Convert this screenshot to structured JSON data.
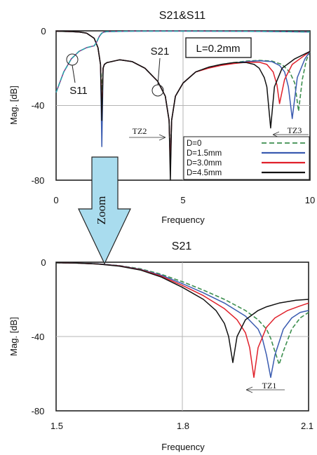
{
  "chart_data": [
    {
      "type": "line",
      "title": "S21&S11",
      "xlabel": "Frequency",
      "ylabel": "Mag. [dB]",
      "xlim": [
        0,
        10
      ],
      "ylim": [
        -80,
        0
      ],
      "xticks": [
        "0",
        "5",
        "10"
      ],
      "yticks": [
        "0",
        "-40",
        "-80"
      ],
      "grid": true,
      "label_box": "L=0.2mm",
      "annotations": {
        "s11": "S11",
        "s21": "S21",
        "tz2": "TZ2",
        "tz3": "TZ3"
      },
      "legend": {
        "position": "bottom-right",
        "entries": [
          {
            "name": "D=0",
            "color": "#3d8f4f",
            "dash": true
          },
          {
            "name": "D=1.5mm",
            "color": "#3a5bb0",
            "dash": false
          },
          {
            "name": "D=3.0mm",
            "color": "#e0202a",
            "dash": false
          },
          {
            "name": "D=4.5mm",
            "color": "#111111",
            "dash": false
          }
        ]
      },
      "series": [
        {
          "name": "D=0",
          "color": "#3d8f4f",
          "dash": true,
          "x": [
            0,
            0.3,
            0.6,
            0.9,
            1.2,
            1.5,
            1.65,
            1.75,
            1.8,
            1.85,
            1.9,
            2.0,
            2.5,
            3.0,
            3.5,
            4.0,
            4.3,
            4.45,
            4.5,
            4.55,
            4.7,
            5.0,
            5.5,
            6.0,
            6.5,
            7.0,
            7.5,
            8.0,
            8.5,
            8.9,
            9.2,
            9.4,
            9.55,
            9.7,
            9.85,
            10.0
          ],
          "y": [
            -0.2,
            -0.3,
            -0.4,
            -0.6,
            -1.2,
            -4,
            -9,
            -18,
            -32,
            -20,
            -18,
            -17,
            -15.5,
            -16.5,
            -20,
            -27,
            -35,
            -48,
            -66,
            -48,
            -35,
            -28,
            -22,
            -19.5,
            -18,
            -17,
            -16.2,
            -15.8,
            -16.2,
            -18,
            -22,
            -28,
            -43,
            -26,
            -16,
            -11
          ]
        },
        {
          "name": "D=1.5mm",
          "color": "#3a5bb0",
          "dash": false,
          "x": [
            0,
            0.3,
            0.6,
            0.9,
            1.2,
            1.5,
            1.65,
            1.75,
            1.8,
            1.85,
            1.9,
            2.0,
            2.5,
            3.0,
            3.5,
            4.0,
            4.3,
            4.45,
            4.5,
            4.55,
            4.7,
            5.0,
            5.5,
            6.0,
            6.5,
            7.0,
            7.5,
            8.0,
            8.5,
            8.8,
            9.0,
            9.15,
            9.3,
            9.5,
            9.8,
            10.0
          ],
          "y": [
            -0.2,
            -0.3,
            -0.4,
            -0.6,
            -1.2,
            -4,
            -9,
            -18,
            -62,
            -20,
            -18,
            -17,
            -15.5,
            -16.5,
            -20,
            -27,
            -35,
            -48,
            -72,
            -48,
            -35,
            -28,
            -22,
            -19.8,
            -18.2,
            -17.2,
            -16.5,
            -16,
            -16.5,
            -18.5,
            -22,
            -30,
            -47,
            -25,
            -15,
            -11
          ]
        },
        {
          "name": "D=3.0mm",
          "color": "#e0202a",
          "dash": false,
          "x": [
            0,
            0.3,
            0.6,
            0.9,
            1.2,
            1.5,
            1.65,
            1.75,
            1.8,
            1.85,
            1.9,
            2.0,
            2.5,
            3.0,
            3.5,
            4.0,
            4.3,
            4.45,
            4.5,
            4.55,
            4.7,
            5.0,
            5.5,
            6.0,
            6.5,
            7.0,
            7.5,
            8.0,
            8.3,
            8.55,
            8.7,
            8.8,
            9.0,
            9.3,
            9.7,
            10.0
          ],
          "y": [
            -0.2,
            -0.3,
            -0.4,
            -0.6,
            -1.2,
            -4,
            -9,
            -18,
            -44,
            -20,
            -18,
            -17,
            -15.5,
            -16.5,
            -20,
            -27,
            -35,
            -48,
            -74,
            -48,
            -35,
            -28,
            -22,
            -20,
            -18.5,
            -17.5,
            -16.8,
            -16.8,
            -18,
            -22,
            -29,
            -39,
            -26,
            -18,
            -14,
            -11
          ]
        },
        {
          "name": "D=4.5mm",
          "color": "#111111",
          "dash": false,
          "x": [
            0,
            0.3,
            0.6,
            0.9,
            1.2,
            1.5,
            1.65,
            1.75,
            1.8,
            1.85,
            1.9,
            2.0,
            2.5,
            3.0,
            3.5,
            4.0,
            4.3,
            4.45,
            4.5,
            4.55,
            4.7,
            5.0,
            5.5,
            6.0,
            6.5,
            7.0,
            7.5,
            7.8,
            8.0,
            8.2,
            8.3,
            8.45,
            8.6,
            8.9,
            9.4,
            10.0
          ],
          "y": [
            -0.2,
            -0.3,
            -0.4,
            -0.6,
            -1.2,
            -4,
            -9,
            -18,
            -48,
            -20,
            -18,
            -17,
            -15.5,
            -16.5,
            -20,
            -27,
            -35,
            -48,
            -80,
            -48,
            -35,
            -28,
            -22,
            -19.5,
            -18,
            -17,
            -17,
            -18,
            -20,
            -25,
            -30,
            -52,
            -30,
            -20,
            -15,
            -11
          ]
        },
        {
          "name": "S11",
          "color": "#7a3a8a",
          "dash": false,
          "x": [
            0,
            0.3,
            0.6,
            0.9,
            1.2,
            1.5,
            1.6,
            1.7,
            1.8,
            1.9,
            2.0,
            2.5,
            3.0,
            4.0,
            5.0,
            6.0,
            8.0,
            10.0
          ],
          "y": [
            -33,
            -22,
            -15,
            -11,
            -9,
            -8,
            -6,
            -3,
            -1.2,
            -0.6,
            -0.4,
            -0.3,
            -0.2,
            -0.15,
            -0.15,
            -0.2,
            -0.3,
            -0.6
          ]
        },
        {
          "name": "S11-cyan",
          "color": "#2aa0a8",
          "dash": true,
          "x": [
            0,
            0.3,
            0.6,
            0.9,
            1.2,
            1.5,
            1.6,
            1.7,
            1.8,
            1.9,
            2.0,
            2.5,
            3.0,
            4.0,
            5.0,
            6.0,
            8.0,
            10.0
          ],
          "y": [
            -33,
            -22,
            -15,
            -11,
            -9,
            -8,
            -6,
            -3,
            -1.2,
            -0.6,
            -0.4,
            -0.3,
            -0.2,
            -0.15,
            -0.15,
            -0.2,
            -0.3,
            -0.6
          ]
        }
      ]
    },
    {
      "type": "line",
      "title": "S21",
      "xlabel": "Frequency",
      "ylabel": "Mag. [dB]",
      "xlim": [
        1.5,
        2.1
      ],
      "ylim": [
        -80,
        0
      ],
      "xticks": [
        "1.5",
        "1.8",
        "2.1"
      ],
      "yticks": [
        "0",
        "-40",
        "-80"
      ],
      "grid": true,
      "annotations": {
        "tz1": "TZ1"
      },
      "series": [
        {
          "name": "D=0",
          "color": "#3d8f4f",
          "dash": true,
          "x": [
            1.5,
            1.55,
            1.6,
            1.65,
            1.7,
            1.75,
            1.8,
            1.85,
            1.9,
            1.95,
            1.98,
            2.0,
            2.01,
            2.02,
            2.03,
            2.04,
            2.06,
            2.08,
            2.1
          ],
          "y": [
            -0.3,
            -0.5,
            -0.9,
            -1.8,
            -3.5,
            -6.5,
            -10.5,
            -15,
            -20,
            -26,
            -31,
            -36,
            -41,
            -48,
            -55,
            -48,
            -36,
            -30,
            -27
          ]
        },
        {
          "name": "D=1.5mm",
          "color": "#3a5bb0",
          "dash": false,
          "x": [
            1.5,
            1.55,
            1.6,
            1.65,
            1.7,
            1.75,
            1.8,
            1.85,
            1.9,
            1.95,
            1.98,
            1.99,
            2.0,
            2.01,
            2.02,
            2.04,
            2.06,
            2.08,
            2.1
          ],
          "y": [
            -0.3,
            -0.5,
            -0.9,
            -1.9,
            -3.8,
            -7,
            -11.5,
            -16.5,
            -22,
            -29,
            -36,
            -41,
            -50,
            -62,
            -50,
            -36,
            -30,
            -27,
            -26
          ]
        },
        {
          "name": "D=3.0mm",
          "color": "#e0202a",
          "dash": false,
          "x": [
            1.5,
            1.55,
            1.6,
            1.65,
            1.7,
            1.75,
            1.8,
            1.85,
            1.9,
            1.93,
            1.95,
            1.96,
            1.97,
            1.98,
            2.0,
            2.02,
            2.05,
            2.08,
            2.1
          ],
          "y": [
            -0.3,
            -0.5,
            -1.0,
            -2,
            -4,
            -7.5,
            -12.5,
            -18,
            -25,
            -31,
            -38,
            -46,
            -62,
            -46,
            -35,
            -30,
            -26,
            -23.5,
            -22
          ]
        },
        {
          "name": "D=4.5mm",
          "color": "#111111",
          "dash": false,
          "x": [
            1.5,
            1.55,
            1.6,
            1.65,
            1.7,
            1.75,
            1.8,
            1.85,
            1.88,
            1.9,
            1.91,
            1.92,
            1.93,
            1.95,
            1.98,
            2.0,
            2.03,
            2.07,
            2.1
          ],
          "y": [
            -0.3,
            -0.5,
            -1.0,
            -2.1,
            -4.2,
            -8,
            -13.5,
            -20,
            -26,
            -33,
            -40,
            -54,
            -40,
            -31,
            -26,
            -24,
            -22,
            -20.5,
            -20
          ]
        }
      ]
    }
  ],
  "zoom_label": "Zoom"
}
